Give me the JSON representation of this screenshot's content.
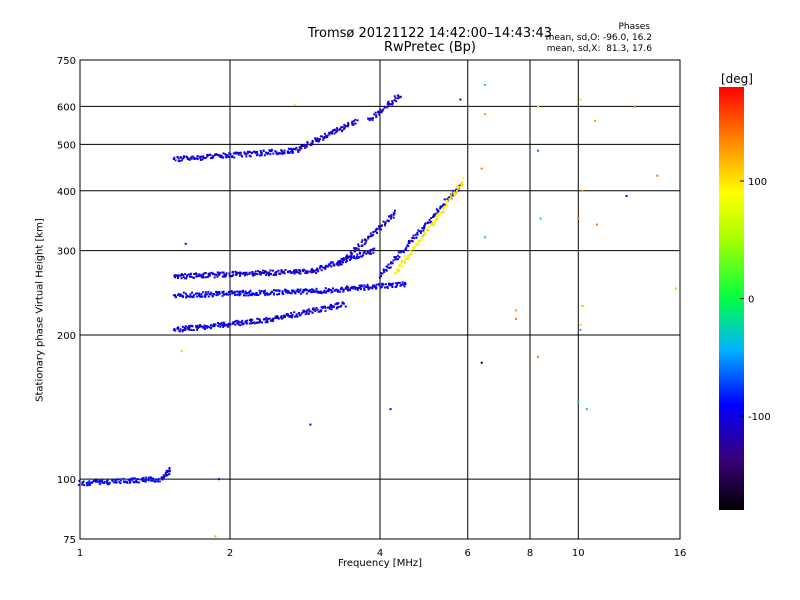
{
  "header": {
    "title_line1": "Tromsø 20121122 14:42:00–14:43:43",
    "title_line2": "RwPretec (Bp)"
  },
  "phase_box": {
    "heading": "Phases",
    "o_stats": "mean, sd,O: -96.0, 16.2",
    "x_stats": "mean, sd,X:  81.3, 17.6"
  },
  "colorbar": {
    "unit": "[deg]",
    "ticks": [
      "100",
      "0",
      "-100"
    ],
    "range": [
      -180,
      180
    ],
    "tick_values": [
      100,
      0,
      -100
    ]
  },
  "chart_data": {
    "type": "scatter",
    "xlabel": "Frequency [MHz]",
    "ylabel": "Stationary phase Virtual Height [km]",
    "x_scale": "log",
    "y_scale": "log",
    "xlim": [
      1,
      16
    ],
    "ylim": [
      75,
      750
    ],
    "grid": true,
    "x_ticks": [
      1,
      2,
      4,
      6,
      8,
      10,
      16
    ],
    "x_tick_labels": [
      "1",
      "2",
      "4",
      "6",
      "8",
      "10",
      "16"
    ],
    "y_ticks": [
      75,
      100,
      200,
      300,
      400,
      500,
      600,
      750
    ],
    "y_tick_labels": [
      "75",
      "100",
      "200",
      "300",
      "400",
      "500",
      "600",
      "750"
    ],
    "color_meaning": "phase [deg]",
    "traces": [
      {
        "x_start": 1.0,
        "x_end": 1.45,
        "h_start": 98,
        "h_end": 100,
        "phase": -90
      },
      {
        "x_start": 1.46,
        "x_end": 1.52,
        "h_start": 100,
        "h_end": 105,
        "phase": -100
      },
      {
        "x_start": 1.55,
        "x_end": 2.4,
        "h_start": 205,
        "h_end": 215,
        "phase": -100
      },
      {
        "x_start": 2.4,
        "x_end": 3.4,
        "h_start": 215,
        "h_end": 232,
        "phase": -105
      },
      {
        "x_start": 1.55,
        "x_end": 3.0,
        "h_start": 242,
        "h_end": 247,
        "phase": -95
      },
      {
        "x_start": 3.0,
        "x_end": 4.5,
        "h_start": 247,
        "h_end": 255,
        "phase": -100
      },
      {
        "x_start": 1.55,
        "x_end": 3.0,
        "h_start": 265,
        "h_end": 272,
        "phase": -105
      },
      {
        "x_start": 3.0,
        "x_end": 3.9,
        "h_start": 275,
        "h_end": 300,
        "phase": -100
      },
      {
        "x_start": 3.3,
        "x_end": 4.3,
        "h_start": 280,
        "h_end": 360,
        "phase": -110
      },
      {
        "x_start": 4.0,
        "x_end": 5.8,
        "h_start": 265,
        "h_end": 410,
        "phase": -100
      },
      {
        "x_start": 4.3,
        "x_end": 5.9,
        "h_start": 270,
        "h_end": 420,
        "phase": 95
      },
      {
        "x_start": 1.55,
        "x_end": 2.7,
        "h_start": 465,
        "h_end": 485,
        "phase": -100
      },
      {
        "x_start": 2.7,
        "x_end": 3.6,
        "h_start": 485,
        "h_end": 560,
        "phase": -105
      },
      {
        "x_start": 3.8,
        "x_end": 4.4,
        "h_start": 560,
        "h_end": 635,
        "phase": -110
      }
    ],
    "scattered_points": [
      {
        "x": 6.5,
        "h": 665,
        "phase": -10
      },
      {
        "x": 6.5,
        "h": 578,
        "phase": 130
      },
      {
        "x": 6.4,
        "h": 445,
        "phase": 140
      },
      {
        "x": 6.5,
        "h": 320,
        "phase": -30
      },
      {
        "x": 6.4,
        "h": 175,
        "phase": -170
      },
      {
        "x": 7.5,
        "h": 225,
        "phase": 130
      },
      {
        "x": 7.5,
        "h": 216,
        "phase": 140
      },
      {
        "x": 8.3,
        "h": 600,
        "phase": 100
      },
      {
        "x": 8.3,
        "h": 485,
        "phase": -60
      },
      {
        "x": 8.4,
        "h": 350,
        "phase": -30
      },
      {
        "x": 8.3,
        "h": 180,
        "phase": 140
      },
      {
        "x": 10.1,
        "h": 620,
        "phase": 100
      },
      {
        "x": 10.2,
        "h": 400,
        "phase": 130
      },
      {
        "x": 10.0,
        "h": 350,
        "phase": 140
      },
      {
        "x": 10.2,
        "h": 230,
        "phase": 120
      },
      {
        "x": 10.1,
        "h": 210,
        "phase": 110
      },
      {
        "x": 10.1,
        "h": 205,
        "phase": -40
      },
      {
        "x": 10.0,
        "h": 145,
        "phase": -20
      },
      {
        "x": 10.4,
        "h": 140,
        "phase": -30
      },
      {
        "x": 10.8,
        "h": 560,
        "phase": 130
      },
      {
        "x": 10.9,
        "h": 340,
        "phase": 140
      },
      {
        "x": 12.5,
        "h": 390,
        "phase": -100
      },
      {
        "x": 13.0,
        "h": 600,
        "phase": 140
      },
      {
        "x": 14.4,
        "h": 430,
        "phase": 140
      },
      {
        "x": 15.7,
        "h": 250,
        "phase": 30
      },
      {
        "x": 1.63,
        "h": 310,
        "phase": -90
      },
      {
        "x": 1.6,
        "h": 185,
        "phase": 110
      },
      {
        "x": 1.9,
        "h": 100,
        "phase": -110
      },
      {
        "x": 1.87,
        "h": 76,
        "phase": 120
      },
      {
        "x": 2.7,
        "h": 605,
        "phase": 100
      },
      {
        "x": 2.9,
        "h": 130,
        "phase": -110
      },
      {
        "x": 4.2,
        "h": 140,
        "phase": -100
      },
      {
        "x": 5.8,
        "h": 620,
        "phase": -140
      }
    ]
  }
}
